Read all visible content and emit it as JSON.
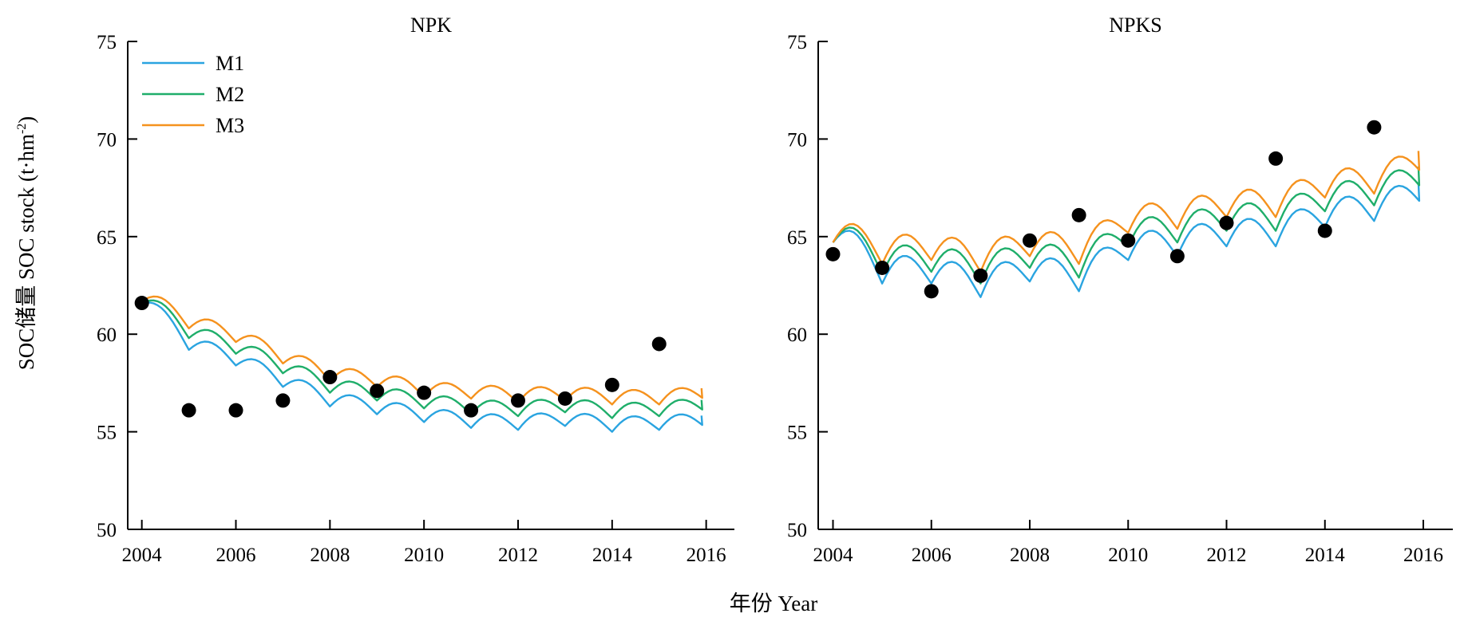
{
  "figure": {
    "xlabel": "年份 Year",
    "ylabel": "SOC储量 SOC stock (t·hm",
    "ylabel_sup": "-2",
    "ylabel_close": ")"
  },
  "colors": {
    "M1": "#2AA4E0",
    "M2": "#1FAE6A",
    "M3": "#F5921E",
    "obs": "#000000"
  },
  "chart_data": [
    {
      "type": "line",
      "title": "NPK",
      "xlim": [
        2003.7,
        2016.6
      ],
      "ylim": [
        50,
        75
      ],
      "xticks": [
        2004,
        2006,
        2008,
        2010,
        2012,
        2014,
        2016
      ],
      "yticks": [
        50,
        55,
        60,
        65,
        70,
        75
      ],
      "legend": "top-left",
      "series": [
        {
          "name": "M1",
          "color": "#2AA4E0",
          "start": 61.6,
          "annual_end": [
            59.2,
            58.4,
            57.3,
            56.3,
            55.9,
            55.5,
            55.2,
            55.1,
            55.3,
            55.0,
            55.1,
            55.2
          ],
          "wave": 0.9
        },
        {
          "name": "M2",
          "color": "#1FAE6A",
          "start": 61.6,
          "annual_end": [
            59.8,
            59.0,
            58.0,
            57.0,
            56.6,
            56.2,
            55.9,
            55.8,
            56.0,
            55.7,
            55.8,
            56.0
          ],
          "wave": 0.9
        },
        {
          "name": "M3",
          "color": "#F5921E",
          "start": 61.7,
          "annual_end": [
            60.3,
            59.6,
            58.5,
            57.6,
            57.3,
            56.8,
            56.7,
            56.5,
            56.6,
            56.4,
            56.4,
            56.6
          ],
          "wave": 0.9
        }
      ],
      "observed": {
        "x": [
          2004,
          2005,
          2006,
          2007,
          2008,
          2009,
          2010,
          2011,
          2012,
          2013,
          2014,
          2015
        ],
        "y": [
          61.6,
          56.1,
          56.1,
          56.6,
          57.8,
          57.1,
          57.0,
          56.1,
          56.6,
          56.7,
          57.4,
          59.5
        ]
      }
    },
    {
      "type": "line",
      "title": "NPKS",
      "xlim": [
        2003.7,
        2016.6
      ],
      "ylim": [
        50,
        75
      ],
      "xticks": [
        2004,
        2006,
        2008,
        2010,
        2012,
        2014,
        2016
      ],
      "yticks": [
        50,
        55,
        60,
        65,
        70,
        75
      ],
      "series": [
        {
          "name": "M1",
          "color": "#2AA4E0",
          "start": 64.7,
          "annual_end": [
            62.6,
            62.6,
            61.9,
            62.7,
            62.2,
            63.8,
            64.0,
            64.5,
            64.5,
            65.5,
            65.8,
            66.6
          ],
          "wave": 1.7
        },
        {
          "name": "M2",
          "color": "#1FAE6A",
          "start": 64.7,
          "annual_end": [
            63.1,
            63.2,
            62.6,
            63.4,
            62.9,
            64.5,
            64.7,
            65.3,
            65.3,
            66.3,
            66.6,
            67.4
          ],
          "wave": 1.7
        },
        {
          "name": "M3",
          "color": "#F5921E",
          "start": 64.7,
          "annual_end": [
            63.6,
            63.8,
            63.2,
            64.0,
            63.6,
            65.2,
            65.4,
            66.0,
            66.0,
            67.0,
            67.2,
            68.2
          ],
          "wave": 1.7
        }
      ],
      "observed": {
        "x": [
          2004,
          2005,
          2006,
          2007,
          2008,
          2009,
          2010,
          2011,
          2012,
          2013,
          2014,
          2015
        ],
        "y": [
          64.1,
          63.4,
          62.2,
          63.0,
          64.8,
          66.1,
          64.8,
          64.0,
          65.7,
          69.0,
          65.3,
          70.6
        ]
      }
    }
  ]
}
